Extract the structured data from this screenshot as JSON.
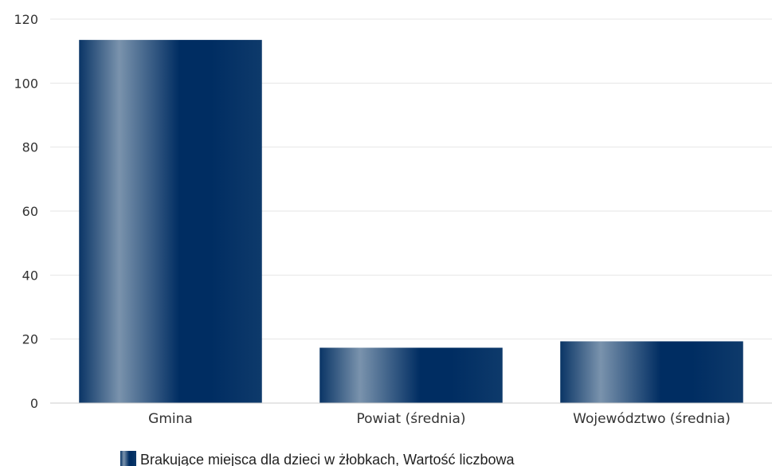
{
  "colors": {
    "bar_dark": "#002d62",
    "bar_light": "#7a93ad",
    "grid": "#e6e6e6",
    "axis": "#cccccc"
  },
  "chart_data": {
    "type": "bar",
    "categories": [
      "Gmina",
      "Powiat (średnia)",
      "Województwo (średnia)"
    ],
    "series": [
      {
        "name": "Brakujące miejsca dla dzieci w żłobkach, Wartość liczbowa",
        "values": [
          113.5,
          17.3,
          19.3
        ]
      }
    ],
    "ylim": [
      0,
      120
    ],
    "yticks": [
      0,
      20,
      40,
      60,
      80,
      100,
      120
    ],
    "grid": true,
    "legend": "bottom"
  }
}
